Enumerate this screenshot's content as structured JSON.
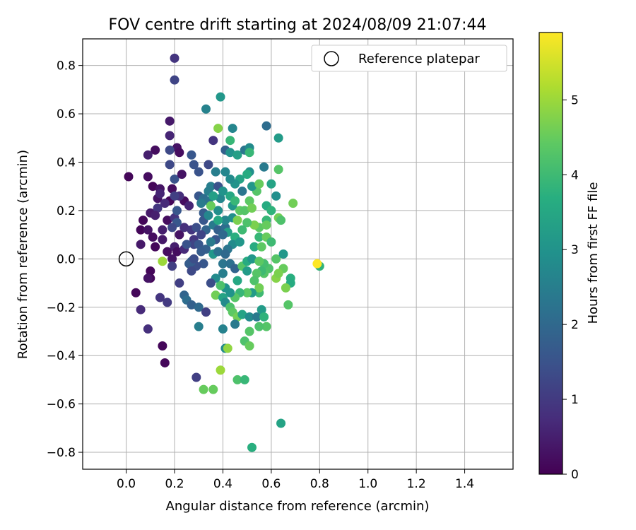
{
  "chart_data": {
    "type": "scatter",
    "title": "FOV centre drift starting at 2024/08/09 21:07:44",
    "xlabel": "Angular distance from reference (arcmin)",
    "ylabel": "Rotation from reference (arcmin)",
    "xlim": [
      -0.18,
      1.6
    ],
    "ylim": [
      -0.87,
      0.91
    ],
    "xticks": [
      "0.0",
      "0.2",
      "0.4",
      "0.6",
      "0.8",
      "1.0",
      "1.2",
      "1.4"
    ],
    "yticks": [
      "−0.8",
      "−0.6",
      "−0.4",
      "−0.2",
      "0.0",
      "0.2",
      "0.4",
      "0.6",
      "0.8"
    ],
    "grid": true,
    "legend": {
      "position": "top-right",
      "entries": [
        "Reference platepar"
      ]
    },
    "colormap": "viridis",
    "colorbar": {
      "label": "Hours from first FF file",
      "range": [
        0,
        5.9
      ],
      "ticks": [
        "0",
        "1",
        "2",
        "3",
        "4",
        "5"
      ]
    },
    "reference_point": {
      "x": 0.0,
      "y": 0.0
    },
    "points": [
      [
        0.01,
        0.34,
        0.1
      ],
      [
        0.09,
        0.34,
        0.2
      ],
      [
        0.12,
        0.45,
        0.2
      ],
      [
        0.09,
        0.43,
        0.5
      ],
      [
        0.18,
        0.57,
        0.4
      ],
      [
        0.18,
        0.51,
        0.6
      ],
      [
        0.21,
        0.46,
        0.3
      ],
      [
        0.22,
        0.44,
        0.2
      ],
      [
        0.11,
        0.3,
        0.1
      ],
      [
        0.14,
        0.29,
        0.3
      ],
      [
        0.13,
        0.25,
        0.3
      ],
      [
        0.14,
        0.27,
        0.6
      ],
      [
        0.19,
        0.29,
        0.2
      ],
      [
        0.18,
        0.24,
        0.1
      ],
      [
        0.16,
        0.23,
        0.7
      ],
      [
        0.07,
        0.16,
        0.1
      ],
      [
        0.1,
        0.19,
        0.4
      ],
      [
        0.13,
        0.21,
        0.9
      ],
      [
        0.12,
        0.18,
        0.5
      ],
      [
        0.06,
        0.12,
        0.1
      ],
      [
        0.09,
        0.12,
        0.3
      ],
      [
        0.11,
        0.09,
        0.2
      ],
      [
        0.15,
        0.12,
        0.5
      ],
      [
        0.17,
        0.16,
        0.2
      ],
      [
        0.15,
        0.08,
        0.4
      ],
      [
        0.12,
        0.05,
        0.1
      ],
      [
        0.17,
        0.03,
        0.2
      ],
      [
        0.19,
        0.0,
        0.3
      ],
      [
        0.2,
        0.05,
        0.5
      ],
      [
        0.21,
        0.03,
        0.2
      ],
      [
        0.24,
        0.04,
        0.7
      ],
      [
        0.22,
        0.1,
        0.3
      ],
      [
        0.24,
        0.13,
        0.8
      ],
      [
        0.2,
        0.17,
        0.9
      ],
      [
        0.06,
        0.06,
        0.4
      ],
      [
        0.1,
        -0.05,
        0.1
      ],
      [
        0.1,
        -0.08,
        0.1
      ],
      [
        0.09,
        -0.08,
        0.3
      ],
      [
        0.04,
        -0.14,
        0.1
      ],
      [
        0.06,
        -0.21,
        0.7
      ],
      [
        0.09,
        -0.29,
        0.8
      ],
      [
        0.15,
        -0.36,
        0.1
      ],
      [
        0.16,
        -0.43,
        0.1
      ],
      [
        0.14,
        -0.16,
        0.9
      ],
      [
        0.17,
        -0.18,
        1.0
      ],
      [
        0.19,
        -0.03,
        1.1
      ],
      [
        0.2,
        0.83,
        0.9
      ],
      [
        0.2,
        0.74,
        1.2
      ],
      [
        0.18,
        0.45,
        1.3
      ],
      [
        0.18,
        0.39,
        1.3
      ],
      [
        0.2,
        0.33,
        1.5
      ],
      [
        0.23,
        0.35,
        0.3
      ],
      [
        0.24,
        0.24,
        0.2
      ],
      [
        0.22,
        0.26,
        0.8
      ],
      [
        0.26,
        0.22,
        0.6
      ],
      [
        0.27,
        0.12,
        0.9
      ],
      [
        0.28,
        0.08,
        0.9
      ],
      [
        0.28,
        0.06,
        1.2
      ],
      [
        0.29,
        0.13,
        1.4
      ],
      [
        0.25,
        0.06,
        1.5
      ],
      [
        0.21,
        0.2,
        1.6
      ],
      [
        0.21,
        0.15,
        1.6
      ],
      [
        0.19,
        0.13,
        1.3
      ],
      [
        0.2,
        0.26,
        1.1
      ],
      [
        0.27,
        0.43,
        1.6
      ],
      [
        0.28,
        0.39,
        1.5
      ],
      [
        0.3,
        0.36,
        1.5
      ],
      [
        0.3,
        0.26,
        1.6
      ],
      [
        0.32,
        0.19,
        1.7
      ],
      [
        0.32,
        0.16,
        1.6
      ],
      [
        0.33,
        0.12,
        1.9
      ],
      [
        0.31,
        0.1,
        1.2
      ],
      [
        0.3,
        0.06,
        1.6
      ],
      [
        0.33,
        0.04,
        1.8
      ],
      [
        0.32,
        -0.02,
        1.6
      ],
      [
        0.29,
        -0.03,
        1.4
      ],
      [
        0.27,
        -0.01,
        1.8
      ],
      [
        0.26,
        -0.02,
        1.7
      ],
      [
        0.22,
        -0.1,
        1.1
      ],
      [
        0.24,
        -0.15,
        1.9
      ],
      [
        0.25,
        -0.17,
        2.1
      ],
      [
        0.27,
        -0.19,
        1.8
      ],
      [
        0.3,
        -0.2,
        2.0
      ],
      [
        0.33,
        -0.22,
        1.1
      ],
      [
        0.3,
        -0.28,
        2.5
      ],
      [
        0.29,
        -0.49,
        1.1
      ],
      [
        0.32,
        -0.54,
        4.5
      ],
      [
        0.36,
        -0.54,
        4.5
      ],
      [
        0.32,
        0.25,
        2.1
      ],
      [
        0.34,
        0.24,
        2.2
      ],
      [
        0.31,
        0.23,
        2.4
      ],
      [
        0.34,
        0.28,
        2.5
      ],
      [
        0.35,
        0.3,
        2.5
      ],
      [
        0.37,
        0.36,
        2.5
      ],
      [
        0.34,
        0.39,
        1.3
      ],
      [
        0.36,
        0.49,
        0.9
      ],
      [
        0.33,
        0.62,
        2.6
      ],
      [
        0.39,
        0.67,
        3.1
      ],
      [
        0.38,
        0.54,
        4.8
      ],
      [
        0.41,
        0.45,
        1.8
      ],
      [
        0.43,
        0.44,
        3.0
      ],
      [
        0.43,
        0.49,
        3.9
      ],
      [
        0.44,
        0.54,
        2.7
      ],
      [
        0.46,
        0.43,
        3.3
      ],
      [
        0.49,
        0.45,
        2.3
      ],
      [
        0.51,
        0.46,
        2.8
      ],
      [
        0.51,
        0.44,
        3.9
      ],
      [
        0.58,
        0.55,
        2.1
      ],
      [
        0.63,
        0.5,
        3.2
      ],
      [
        0.63,
        0.37,
        4.3
      ],
      [
        0.57,
        0.38,
        2.4
      ],
      [
        0.51,
        0.36,
        2.9
      ],
      [
        0.5,
        0.35,
        3.6
      ],
      [
        0.47,
        0.33,
        3.4
      ],
      [
        0.48,
        0.28,
        2.3
      ],
      [
        0.45,
        0.31,
        3.0
      ],
      [
        0.43,
        0.33,
        2.8
      ],
      [
        0.41,
        0.36,
        2.7
      ],
      [
        0.38,
        0.3,
        1.5
      ],
      [
        0.39,
        0.25,
        2.7
      ],
      [
        0.4,
        0.28,
        3.0
      ],
      [
        0.38,
        0.2,
        2.9
      ],
      [
        0.36,
        0.26,
        3.3
      ],
      [
        0.35,
        0.22,
        4.5
      ],
      [
        0.34,
        0.18,
        2.7
      ],
      [
        0.36,
        0.14,
        2.4
      ],
      [
        0.38,
        0.12,
        1.8
      ],
      [
        0.37,
        0.08,
        1.6
      ],
      [
        0.36,
        0.02,
        3.1
      ],
      [
        0.38,
        0.03,
        2.2
      ],
      [
        0.41,
        0.13,
        2.1
      ],
      [
        0.41,
        0.16,
        2.7
      ],
      [
        0.42,
        0.11,
        3.3
      ],
      [
        0.44,
        0.22,
        3.1
      ],
      [
        0.43,
        0.26,
        3.5
      ],
      [
        0.45,
        0.24,
        3.9
      ],
      [
        0.47,
        0.2,
        4.4
      ],
      [
        0.49,
        0.2,
        4.3
      ],
      [
        0.51,
        0.24,
        4.4
      ],
      [
        0.52,
        0.21,
        4.6
      ],
      [
        0.54,
        0.28,
        4.3
      ],
      [
        0.52,
        0.3,
        3.1
      ],
      [
        0.55,
        0.31,
        4.5
      ],
      [
        0.58,
        0.22,
        3.6
      ],
      [
        0.6,
        0.31,
        3.4
      ],
      [
        0.62,
        0.26,
        2.9
      ],
      [
        0.58,
        0.16,
        3.9
      ],
      [
        0.6,
        0.2,
        3.8
      ],
      [
        0.63,
        0.17,
        4.6
      ],
      [
        0.64,
        0.16,
        4.2
      ],
      [
        0.69,
        0.23,
        4.6
      ],
      [
        0.55,
        0.13,
        4.4
      ],
      [
        0.53,
        0.14,
        4.7
      ],
      [
        0.5,
        0.15,
        4.2
      ],
      [
        0.48,
        0.12,
        4.0
      ],
      [
        0.45,
        0.09,
        3.7
      ],
      [
        0.44,
        0.06,
        2.8
      ],
      [
        0.42,
        0.04,
        2.3
      ],
      [
        0.41,
        0.02,
        2.0
      ],
      [
        0.4,
        -0.02,
        2.3
      ],
      [
        0.4,
        -0.06,
        2.5
      ],
      [
        0.43,
        -0.02,
        2.2
      ],
      [
        0.45,
        -0.04,
        1.9
      ],
      [
        0.46,
        -0.09,
        3.5
      ],
      [
        0.48,
        -0.03,
        4.3
      ],
      [
        0.5,
        -0.05,
        3.2
      ],
      [
        0.5,
        -0.01,
        3.6
      ],
      [
        0.52,
        0.0,
        3.1
      ],
      [
        0.53,
        0.05,
        3.6
      ],
      [
        0.55,
        0.09,
        3.9
      ],
      [
        0.56,
        0.05,
        4.4
      ],
      [
        0.58,
        0.09,
        4.5
      ],
      [
        0.6,
        0.07,
        4.0
      ],
      [
        0.62,
        0.0,
        4.3
      ],
      [
        0.65,
        0.02,
        3.1
      ],
      [
        0.65,
        -0.04,
        4.5
      ],
      [
        0.68,
        -0.08,
        3.7
      ],
      [
        0.68,
        -0.1,
        3.6
      ],
      [
        0.66,
        -0.12,
        4.7
      ],
      [
        0.67,
        -0.19,
        4.3
      ],
      [
        0.59,
        -0.04,
        4.2
      ],
      [
        0.57,
        -0.06,
        4.3
      ],
      [
        0.57,
        -0.02,
        4.1
      ],
      [
        0.55,
        -0.01,
        4.4
      ],
      [
        0.56,
        -0.05,
        4.0
      ],
      [
        0.54,
        -0.06,
        4.3
      ],
      [
        0.53,
        -0.09,
        4.2
      ],
      [
        0.55,
        -0.14,
        4.0
      ],
      [
        0.55,
        -0.12,
        4.6
      ],
      [
        0.52,
        -0.14,
        3.2
      ],
      [
        0.5,
        -0.14,
        4.4
      ],
      [
        0.47,
        -0.14,
        3.9
      ],
      [
        0.45,
        -0.16,
        4.3
      ],
      [
        0.43,
        -0.14,
        3.0
      ],
      [
        0.41,
        -0.12,
        3.0
      ],
      [
        0.39,
        -0.11,
        4.2
      ],
      [
        0.37,
        -0.08,
        2.8
      ],
      [
        0.35,
        -0.1,
        1.4
      ],
      [
        0.37,
        -0.15,
        4.6
      ],
      [
        0.4,
        -0.16,
        3.4
      ],
      [
        0.41,
        -0.18,
        2.8
      ],
      [
        0.43,
        -0.2,
        4.2
      ],
      [
        0.44,
        -0.22,
        4.4
      ],
      [
        0.46,
        -0.24,
        4.6
      ],
      [
        0.48,
        -0.23,
        3.4
      ],
      [
        0.51,
        -0.24,
        2.8
      ],
      [
        0.54,
        -0.24,
        2.4
      ],
      [
        0.56,
        -0.21,
        3.2
      ],
      [
        0.57,
        -0.24,
        3.8
      ],
      [
        0.58,
        -0.28,
        4.3
      ],
      [
        0.55,
        -0.28,
        4.2
      ],
      [
        0.51,
        -0.3,
        4.3
      ],
      [
        0.49,
        -0.34,
        4.2
      ],
      [
        0.51,
        -0.36,
        4.5
      ],
      [
        0.45,
        -0.27,
        2.4
      ],
      [
        0.4,
        -0.29,
        2.6
      ],
      [
        0.41,
        -0.37,
        2.8
      ],
      [
        0.42,
        -0.37,
        4.9
      ],
      [
        0.39,
        -0.46,
        5.0
      ],
      [
        0.46,
        -0.5,
        4.2
      ],
      [
        0.49,
        -0.5,
        3.9
      ],
      [
        0.52,
        -0.78,
        3.7
      ],
      [
        0.64,
        -0.68,
        3.4
      ],
      [
        0.8,
        -0.03,
        3.8
      ],
      [
        0.79,
        -0.02,
        5.9
      ],
      [
        0.15,
        -0.01,
        5.0
      ],
      [
        0.62,
        -0.08,
        4.8
      ],
      [
        0.63,
        -0.06,
        4.7
      ],
      [
        0.58,
        0.14,
        4.5
      ],
      [
        0.44,
        0.17,
        2.9
      ],
      [
        0.46,
        0.16,
        4.7
      ],
      [
        0.47,
        0.07,
        3.1
      ],
      [
        0.38,
        0.16,
        3.5
      ],
      [
        0.4,
        0.1,
        2.0
      ],
      [
        0.35,
        0.07,
        2.4
      ],
      [
        0.31,
        0.03,
        1.7
      ],
      [
        0.28,
        0.0,
        1.4
      ],
      [
        0.27,
        -0.05,
        1.3
      ]
    ]
  }
}
